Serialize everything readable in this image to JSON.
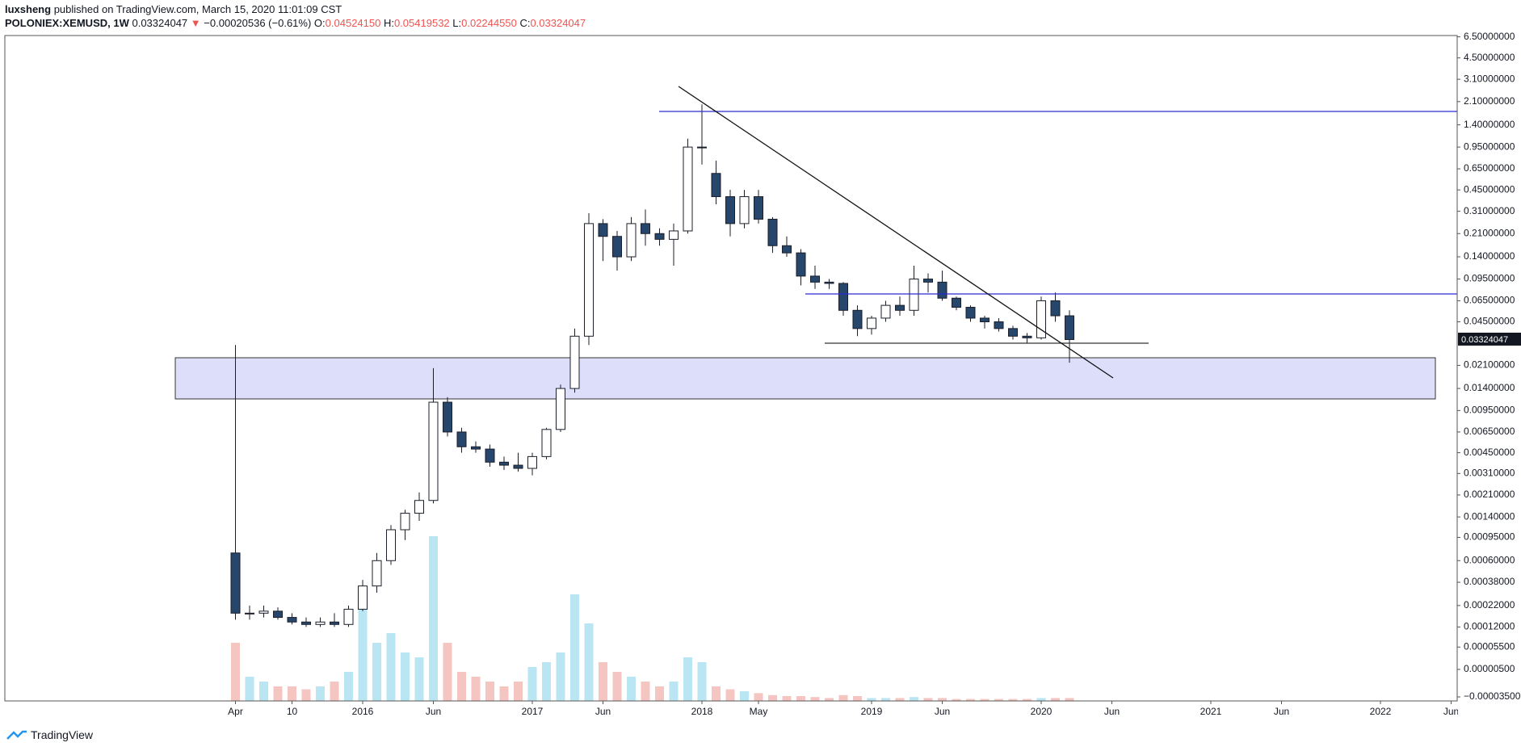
{
  "header": {
    "author": "luxsheng",
    "published": "published on TradingView.com, March 15, 2020 11:01:09 CST",
    "symbol": "POLONIEX:XEMUSD, 1W",
    "last": "0.03324047",
    "arrow": "▼",
    "change": "−0.00020536 (−0.61%)",
    "ohlc": [
      {
        "label": "O:",
        "value": "0.04524150"
      },
      {
        "label": "H:",
        "value": "0.05419532"
      },
      {
        "label": "L:",
        "value": "0.02244550"
      },
      {
        "label": "C:",
        "value": "0.03324047"
      }
    ]
  },
  "footer": {
    "brand": "TradingView"
  },
  "chart_data": {
    "type": "candlestick",
    "log_scale": true,
    "up_color": "#ffffff",
    "down_color": "#26466b",
    "wick_color": "#1b1f2a",
    "volume_up_color": "#a9dff0",
    "volume_down_color": "#f2b6b3",
    "x": [
      "2015-04",
      "2015-05",
      "2015-06",
      "2015-07",
      "2015-08",
      "2015-09",
      "2015-10",
      "2015-11",
      "2015-12",
      "2016-01",
      "2016-02",
      "2016-03",
      "2016-04",
      "2016-05",
      "2016-06",
      "2016-07",
      "2016-08",
      "2016-09",
      "2016-10",
      "2016-11",
      "2016-12",
      "2017-01",
      "2017-02",
      "2017-03",
      "2017-04",
      "2017-05",
      "2017-06",
      "2017-07",
      "2017-08",
      "2017-09",
      "2017-10",
      "2017-11",
      "2017-12",
      "2018-01",
      "2018-02",
      "2018-03",
      "2018-04",
      "2018-05",
      "2018-06",
      "2018-07",
      "2018-08",
      "2018-09",
      "2018-10",
      "2018-11",
      "2018-12",
      "2019-01",
      "2019-02",
      "2019-03",
      "2019-04",
      "2019-05",
      "2019-06",
      "2019-07",
      "2019-08",
      "2019-09",
      "2019-10",
      "2019-11",
      "2019-12",
      "2020-01",
      "2020-02",
      "2020-03"
    ],
    "open": [
      0.0007,
      0.00018,
      0.00018,
      0.00019,
      0.00016,
      0.00014,
      0.00013,
      0.00014,
      0.00013,
      0.0002,
      0.00035,
      0.0006,
      0.0011,
      0.0015,
      0.0019,
      0.011,
      0.0065,
      0.005,
      0.0048,
      0.0038,
      0.0036,
      0.0034,
      0.0042,
      0.0068,
      0.014,
      0.035,
      0.25,
      0.2,
      0.14,
      0.25,
      0.21,
      0.19,
      0.22,
      0.95,
      0.6,
      0.4,
      0.25,
      0.4,
      0.27,
      0.17,
      0.15,
      0.1,
      0.09,
      0.088,
      0.055,
      0.04,
      0.048,
      0.06,
      0.055,
      0.095,
      0.09,
      0.068,
      0.058,
      0.048,
      0.045,
      0.04,
      0.035,
      0.034,
      0.065,
      0.05
    ],
    "high": [
      0.03,
      0.00022,
      0.00022,
      0.00021,
      0.00018,
      0.00016,
      0.00016,
      0.00018,
      0.00022,
      0.0004,
      0.0007,
      0.0012,
      0.0016,
      0.0022,
      0.02,
      0.012,
      0.007,
      0.0055,
      0.0052,
      0.0042,
      0.0045,
      0.0045,
      0.007,
      0.015,
      0.04,
      0.3,
      0.27,
      0.22,
      0.28,
      0.32,
      0.23,
      0.25,
      1.1,
      2.0,
      0.75,
      0.45,
      0.45,
      0.45,
      0.28,
      0.2,
      0.16,
      0.12,
      0.095,
      0.09,
      0.06,
      0.05,
      0.065,
      0.07,
      0.12,
      0.105,
      0.11,
      0.07,
      0.06,
      0.05,
      0.048,
      0.042,
      0.037,
      0.07,
      0.075,
      0.055
    ],
    "low": [
      0.00015,
      0.00015,
      0.00016,
      0.00015,
      0.00013,
      0.00012,
      0.00012,
      0.00012,
      0.00012,
      0.00019,
      0.0003,
      0.00055,
      0.0009,
      0.0013,
      0.0018,
      0.006,
      0.0045,
      0.0045,
      0.0035,
      0.0033,
      0.0032,
      0.003,
      0.004,
      0.0065,
      0.013,
      0.03,
      0.13,
      0.11,
      0.13,
      0.17,
      0.17,
      0.12,
      0.21,
      0.7,
      0.35,
      0.2,
      0.23,
      0.25,
      0.15,
      0.14,
      0.085,
      0.08,
      0.08,
      0.05,
      0.035,
      0.036,
      0.045,
      0.05,
      0.05,
      0.075,
      0.065,
      0.055,
      0.045,
      0.04,
      0.038,
      0.033,
      0.031,
      0.033,
      0.045,
      0.022
    ],
    "close": [
      0.00018,
      0.00018,
      0.00019,
      0.00016,
      0.00014,
      0.00013,
      0.00014,
      0.00013,
      0.0002,
      0.00035,
      0.0006,
      0.0011,
      0.0015,
      0.0019,
      0.011,
      0.0065,
      0.005,
      0.0048,
      0.0038,
      0.0036,
      0.0034,
      0.0042,
      0.0068,
      0.014,
      0.035,
      0.25,
      0.2,
      0.14,
      0.25,
      0.21,
      0.19,
      0.22,
      0.95,
      0.95,
      0.4,
      0.25,
      0.4,
      0.27,
      0.17,
      0.15,
      0.1,
      0.09,
      0.088,
      0.055,
      0.04,
      0.048,
      0.06,
      0.055,
      0.095,
      0.09,
      0.068,
      0.058,
      0.048,
      0.045,
      0.04,
      0.035,
      0.034,
      0.065,
      0.05,
      0.033
    ],
    "volume": [
      60,
      25,
      20,
      15,
      15,
      12,
      15,
      20,
      30,
      100,
      60,
      70,
      50,
      45,
      170,
      60,
      30,
      25,
      20,
      15,
      20,
      35,
      40,
      50,
      110,
      80,
      40,
      30,
      25,
      20,
      15,
      20,
      45,
      40,
      15,
      12,
      10,
      8,
      6,
      5,
      5,
      4,
      3,
      6,
      5,
      3,
      3,
      3,
      4,
      3,
      3,
      2,
      2,
      2,
      2,
      2,
      2,
      3,
      3,
      3
    ],
    "last_price": 0.03324047,
    "ylim": [
      -3.5e-05,
      6.5
    ],
    "yticks": [
      {
        "value": 6.5,
        "label": "6.50000000"
      },
      {
        "value": 4.5,
        "label": "4.50000000"
      },
      {
        "value": 3.1,
        "label": "3.10000000"
      },
      {
        "value": 2.1,
        "label": "2.10000000"
      },
      {
        "value": 1.4,
        "label": "1.40000000"
      },
      {
        "value": 0.95,
        "label": "0.95000000"
      },
      {
        "value": 0.65,
        "label": "0.65000000"
      },
      {
        "value": 0.45,
        "label": "0.45000000"
      },
      {
        "value": 0.31,
        "label": "0.31000000"
      },
      {
        "value": 0.21,
        "label": "0.21000000"
      },
      {
        "value": 0.14,
        "label": "0.14000000"
      },
      {
        "value": 0.095,
        "label": "0.09500000"
      },
      {
        "value": 0.065,
        "label": "0.06500000"
      },
      {
        "value": 0.045,
        "label": "0.04500000"
      },
      {
        "value": 0.021,
        "label": "0.02100000"
      },
      {
        "value": 0.014,
        "label": "0.01400000"
      },
      {
        "value": 0.0095,
        "label": "0.00950000"
      },
      {
        "value": 0.0065,
        "label": "0.00650000"
      },
      {
        "value": 0.0045,
        "label": "0.00450000"
      },
      {
        "value": 0.0031,
        "label": "0.00310000"
      },
      {
        "value": 0.0021,
        "label": "0.00210000"
      },
      {
        "value": 0.0014,
        "label": "0.00140000"
      },
      {
        "value": 0.00095,
        "label": "0.00095000"
      },
      {
        "value": 0.0006,
        "label": "0.00060000"
      },
      {
        "value": 0.00038,
        "label": "0.00038000"
      },
      {
        "value": 0.00022,
        "label": "0.00022000"
      },
      {
        "value": 0.00012,
        "label": "0.00012000"
      },
      {
        "value": 5.5e-05,
        "label": "0.00005500"
      },
      {
        "value": 5e-06,
        "label": "0.00000500"
      },
      {
        "value": -3.5e-05,
        "label": "−0.00003500"
      }
    ],
    "xticks": [
      {
        "value": "2015-04",
        "label": "Apr"
      },
      {
        "value": "2015-08",
        "label": "10"
      },
      {
        "value": "2016-01",
        "label": "2016"
      },
      {
        "value": "2016-06",
        "label": "Jun"
      },
      {
        "value": "2017-01",
        "label": "2017"
      },
      {
        "value": "2017-06",
        "label": "Jun"
      },
      {
        "value": "2018-01",
        "label": "2018"
      },
      {
        "value": "2018-05",
        "label": "May"
      },
      {
        "value": "2019-01",
        "label": "2019"
      },
      {
        "value": "2019-06",
        "label": "Jun"
      },
      {
        "value": "2020-01",
        "label": "2020"
      },
      {
        "value": "2020-06",
        "label": "Jun"
      },
      {
        "value": "2021-01",
        "label": "2021"
      },
      {
        "value": "2021-06",
        "label": "Jun"
      },
      {
        "value": "2022-01",
        "label": "2022"
      },
      {
        "value": "2022-06",
        "label": "Jun"
      }
    ]
  }
}
